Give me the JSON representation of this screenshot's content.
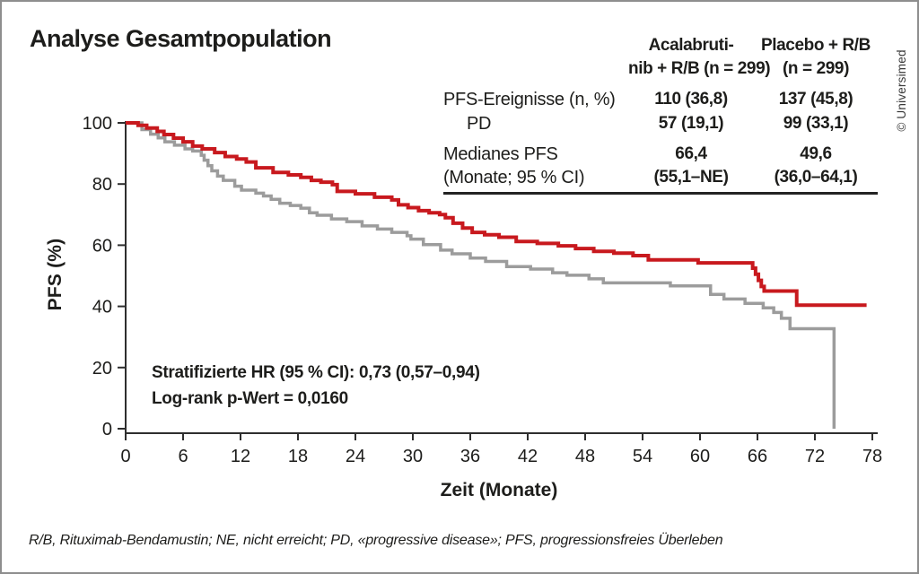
{
  "header": {
    "title": "Analyse Gesamtpopulation",
    "copyright": "© Universimed"
  },
  "summary_table": {
    "columns": {
      "acalabrutinib": {
        "line1": "Acalabruti-",
        "line2": "nib + R/B (n = 299)",
        "color": "#c8191e"
      },
      "placebo": {
        "line1": "Placebo + R/B",
        "line2": "(n = 299)",
        "color": "#a6a7a9"
      }
    },
    "rows": [
      {
        "label": "PFS-Ereignisse (n, %)",
        "acalabrutinib": "110 (36,8)",
        "placebo": "137 (45,8)"
      },
      {
        "label": "PD",
        "acalabrutinib": "57 (19,1)",
        "placebo": "99 (33,1)"
      },
      {
        "label_line1": "Medianes PFS",
        "label_line2": "(Monate; 95 % CI)",
        "acalabrutinib_line1": "66,4",
        "acalabrutinib_line2": "(55,1–NE)",
        "placebo_line1": "49,6",
        "placebo_line2": "(36,0–64,1)"
      }
    ]
  },
  "annotation": {
    "line1": "Stratifizierte HR (95 % CI): 0,73 (0,57–0,94)",
    "line2": "Log-rank p-Wert = 0,0160"
  },
  "footnote": "R/B, Rituximab-Bendamustin; NE, nicht erreicht; PD, «progressive disease»; PFS, progressionsfreies Überleben",
  "chart_data": {
    "type": "line",
    "subtype": "kaplan-meier-step",
    "title": "Analyse Gesamtpopulation",
    "xlabel": "Zeit (Monate)",
    "ylabel": "PFS (%)",
    "xlim": [
      0,
      78
    ],
    "ylim": [
      0,
      100
    ],
    "xticks": [
      0,
      6,
      12,
      18,
      24,
      30,
      36,
      42,
      48,
      54,
      60,
      66,
      72,
      78
    ],
    "yticks": [
      0,
      20,
      40,
      60,
      80,
      100
    ],
    "grid": false,
    "legend_position": "table-top-right",
    "axis_color": "#2e2e2e",
    "series": [
      {
        "name": "Placebo + R/B (n = 299)",
        "color": "#9c9c9c",
        "stroke_width": 3.5,
        "median_pfs_months": "49,6 (36,0–64,1)",
        "points": [
          [
            0,
            100
          ],
          [
            1.7,
            97.8
          ],
          [
            2.6,
            96.3
          ],
          [
            3.4,
            95.1
          ],
          [
            4.1,
            93.8
          ],
          [
            5.1,
            92.7
          ],
          [
            6.2,
            91.5
          ],
          [
            7.0,
            90.8
          ],
          [
            7.9,
            89.4
          ],
          [
            8.2,
            87.8
          ],
          [
            8.6,
            86.0
          ],
          [
            9.0,
            84.3
          ],
          [
            9.6,
            82.6
          ],
          [
            10.2,
            81.2
          ],
          [
            11.4,
            79.3
          ],
          [
            12.1,
            78.0
          ],
          [
            13.6,
            77.0
          ],
          [
            14.4,
            76.1
          ],
          [
            15.2,
            75.0
          ],
          [
            16.1,
            73.7
          ],
          [
            17.2,
            73.0
          ],
          [
            18.3,
            72.1
          ],
          [
            19.2,
            70.6
          ],
          [
            20.0,
            69.8
          ],
          [
            21.5,
            68.6
          ],
          [
            23.1,
            67.7
          ],
          [
            24.7,
            66.3
          ],
          [
            26.3,
            65.3
          ],
          [
            27.8,
            64.2
          ],
          [
            29.4,
            63.1
          ],
          [
            29.8,
            62.0
          ],
          [
            31.1,
            60.2
          ],
          [
            32.9,
            58.4
          ],
          [
            34.1,
            57.2
          ],
          [
            36.0,
            55.8
          ],
          [
            37.6,
            54.7
          ],
          [
            39.8,
            53.0
          ],
          [
            42.3,
            52.2
          ],
          [
            44.6,
            51.0
          ],
          [
            46.1,
            50.2
          ],
          [
            48.4,
            49.0
          ],
          [
            49.9,
            47.7
          ],
          [
            56.9,
            46.7
          ],
          [
            61.1,
            43.9
          ],
          [
            62.5,
            42.4
          ],
          [
            64.7,
            41.0
          ],
          [
            66.6,
            39.5
          ],
          [
            67.7,
            38.0
          ],
          [
            68.5,
            36.1
          ],
          [
            69.4,
            32.7
          ],
          [
            74.0,
            32.7
          ],
          [
            74.0,
            0
          ]
        ]
      },
      {
        "name": "Acalabrutinib + R/B (n = 299)",
        "color": "#c8191e",
        "stroke_width": 4,
        "median_pfs_months": "66,4 (55,1–NE)",
        "points": [
          [
            0,
            100
          ],
          [
            1.3,
            99.2
          ],
          [
            2.2,
            98.3
          ],
          [
            3.3,
            97.2
          ],
          [
            4.0,
            96.2
          ],
          [
            5.0,
            95.0
          ],
          [
            6.0,
            93.8
          ],
          [
            7.0,
            92.4
          ],
          [
            8.0,
            91.5
          ],
          [
            9.3,
            90.3
          ],
          [
            10.4,
            89.0
          ],
          [
            11.6,
            88.2
          ],
          [
            12.6,
            87.2
          ],
          [
            13.6,
            85.3
          ],
          [
            15.4,
            83.8
          ],
          [
            17.0,
            83.0
          ],
          [
            18.3,
            82.2
          ],
          [
            19.4,
            81.2
          ],
          [
            20.4,
            80.6
          ],
          [
            21.6,
            79.8
          ],
          [
            22.1,
            77.6
          ],
          [
            24.0,
            76.8
          ],
          [
            26.0,
            75.7
          ],
          [
            27.8,
            74.8
          ],
          [
            28.5,
            73.2
          ],
          [
            29.5,
            72.3
          ],
          [
            30.6,
            71.3
          ],
          [
            31.7,
            70.6
          ],
          [
            32.8,
            70.0
          ],
          [
            33.4,
            69.0
          ],
          [
            34.2,
            67.2
          ],
          [
            35.2,
            65.6
          ],
          [
            36.2,
            64.2
          ],
          [
            37.5,
            63.4
          ],
          [
            39.0,
            62.6
          ],
          [
            40.8,
            61.2
          ],
          [
            43.0,
            60.6
          ],
          [
            45.2,
            59.8
          ],
          [
            47.0,
            58.9
          ],
          [
            48.9,
            58.0
          ],
          [
            51.0,
            57.4
          ],
          [
            53.0,
            56.6
          ],
          [
            54.6,
            55.2
          ],
          [
            59.8,
            54.2
          ],
          [
            65.5,
            52.5
          ],
          [
            65.8,
            50.5
          ],
          [
            66.1,
            48.5
          ],
          [
            66.4,
            46.5
          ],
          [
            66.7,
            45.0
          ],
          [
            70.1,
            40.4
          ],
          [
            77.4,
            40.4
          ]
        ]
      }
    ]
  }
}
